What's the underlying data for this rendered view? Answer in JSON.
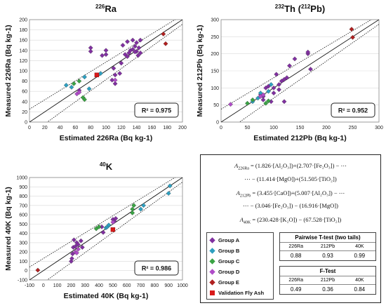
{
  "legend": [
    {
      "name": "Group A",
      "color": "#8030a0",
      "marker": "diamond"
    },
    {
      "name": "Group B",
      "color": "#2e9fc0",
      "marker": "diamond"
    },
    {
      "name": "Group C",
      "color": "#3aa344",
      "marker": "diamond"
    },
    {
      "name": "Group D",
      "color": "#b04cc8",
      "marker": "diamond"
    },
    {
      "name": "Group E",
      "color": "#b02020",
      "marker": "diamond"
    },
    {
      "name": "Validation Fly Ash",
      "color": "#d81a1a",
      "marker": "square"
    }
  ],
  "equations": {
    "ra_lhs": "A",
    "ra_lhs_sub": "226Ra",
    "ra_line1": "= (1.826·[Al₂O₃])+(2.707·[Fe₂O₃]) − ⋯",
    "ra_line2": "⋯ − (11.414·[MgO])+(51.505·[TiO₂])",
    "th_lhs": "A",
    "th_lhs_sub": "212Pb",
    "th_line1": "= (3.455·[CaO])+(5.007·[Al₂O₃]) − ⋯",
    "th_line2": "⋯ − (3.046·[Fe₂O₃]) − (16.916·[MgO])",
    "k_lhs": "A",
    "k_lhs_sub": "40K",
    "k_line1": "= (230.428·[K₂O]) − (67.528·[TiO₂])"
  },
  "tables": {
    "ttest": {
      "title": "Pairwise T-test (two tails)",
      "headers": [
        "226Ra",
        "212Pb",
        "40K"
      ],
      "values": [
        "0.88",
        "0.93",
        "0.99"
      ]
    },
    "ftest": {
      "title": "F-Test",
      "headers": [
        "226Ra",
        "212Pb",
        "40K"
      ],
      "values": [
        "0.49",
        "0.36",
        "0.84"
      ]
    }
  },
  "chart_data": [
    {
      "type": "scatter",
      "title_pre": "226",
      "title_main": "Ra",
      "xlabel": "Estimated 226Ra (Bq kg-1)",
      "ylabel": "Measured 226Ra (Bq kg-1)",
      "xlim": [
        0,
        200
      ],
      "ylim": [
        0,
        200
      ],
      "xticks": [
        0,
        20,
        40,
        60,
        80,
        100,
        120,
        140,
        160,
        180,
        200
      ],
      "yticks": [
        0,
        20,
        40,
        60,
        80,
        100,
        120,
        140,
        160,
        180,
        200
      ],
      "r2": "R² = 0.975",
      "fit": {
        "slope": 1.0,
        "intercept": 0
      },
      "series": [
        {
          "name": "Group A",
          "points": [
            [
              65,
              62
            ],
            [
              95,
              130
            ],
            [
              100,
              140
            ],
            [
              110,
              105
            ],
            [
              112,
              92
            ],
            [
              118,
              95
            ],
            [
              120,
              115
            ],
            [
              125,
              132
            ],
            [
              128,
              128
            ],
            [
              130,
              135
            ],
            [
              132,
              140
            ],
            [
              135,
              142
            ],
            [
              135,
              160
            ],
            [
              138,
              148
            ],
            [
              140,
              155
            ],
            [
              140,
              138
            ],
            [
              142,
              130
            ],
            [
              143,
              145
            ],
            [
              145,
              135
            ],
            [
              145,
              160
            ],
            [
              128,
              157
            ],
            [
              108,
              82
            ],
            [
              112,
              75
            ],
            [
              80,
              145
            ],
            [
              80,
              138
            ],
            [
              100,
              132
            ],
            [
              138,
              137
            ],
            [
              122,
              150
            ]
          ]
        },
        {
          "name": "Group B",
          "points": [
            [
              48,
              72
            ],
            [
              55,
              68
            ],
            [
              72,
              88
            ],
            [
              78,
              65
            ],
            [
              93,
              95
            ]
          ]
        },
        {
          "name": "Group C",
          "points": [
            [
              58,
              75
            ],
            [
              65,
              80
            ],
            [
              70,
              48
            ],
            [
              72,
              44
            ]
          ]
        },
        {
          "name": "Group D",
          "points": [
            [
              62,
              55
            ],
            [
              65,
              58
            ],
            [
              112,
              82
            ]
          ]
        },
        {
          "name": "Group E",
          "points": [
            [
              175,
              172
            ],
            [
              178,
              153
            ]
          ]
        },
        {
          "name": "Validation Fly Ash",
          "points": [
            [
              88,
              92
            ]
          ]
        }
      ]
    },
    {
      "type": "scatter",
      "title_pre": "232",
      "title_main": "Th (",
      "title_pre2": "212",
      "title_main2": "Pb)",
      "xlabel": "Estimated 212Pb (Bq kg-1)",
      "ylabel": "Measured 212Pb (Bq kg-1)",
      "xlim": [
        0,
        300
      ],
      "ylim": [
        0,
        300
      ],
      "xticks": [
        0,
        50,
        100,
        150,
        200,
        250,
        300
      ],
      "yticks": [
        0,
        50,
        100,
        150,
        200,
        250,
        300
      ],
      "r2": "R² = 0.952",
      "fit": {
        "slope": 1.0,
        "intercept": 0
      },
      "series": [
        {
          "name": "Group A",
          "points": [
            [
              75,
              80
            ],
            [
              80,
              75
            ],
            [
              85,
              100
            ],
            [
              90,
              105
            ],
            [
              100,
              85
            ],
            [
              105,
              140
            ],
            [
              110,
              95
            ],
            [
              110,
              110
            ],
            [
              115,
              120
            ],
            [
              120,
              60
            ],
            [
              120,
              125
            ],
            [
              125,
              130
            ],
            [
              130,
              165
            ],
            [
              140,
              185
            ],
            [
              165,
              200
            ],
            [
              165,
              205
            ],
            [
              170,
              155
            ],
            [
              80,
              65
            ],
            [
              95,
              60
            ],
            [
              100,
              100
            ]
          ]
        },
        {
          "name": "Group B",
          "points": [
            [
              60,
              60
            ],
            [
              70,
              70
            ],
            [
              75,
              85
            ],
            [
              90,
              90
            ],
            [
              95,
              110
            ]
          ]
        },
        {
          "name": "Group C",
          "points": [
            [
              50,
              55
            ],
            [
              60,
              65
            ],
            [
              85,
              55
            ],
            [
              90,
              62
            ]
          ]
        },
        {
          "name": "Group D",
          "points": [
            [
              18,
              52
            ],
            [
              75,
              75
            ],
            [
              80,
              80
            ]
          ]
        },
        {
          "name": "Group E",
          "points": [
            [
              248,
              272
            ],
            [
              250,
              248
            ]
          ]
        },
        {
          "name": "Validation Fly Ash",
          "points": []
        }
      ]
    },
    {
      "type": "scatter",
      "title_pre": "40",
      "title_main": "K",
      "xlabel": "Estimated 40K (Bq kg-1)",
      "ylabel": "Measured 40K (Bq kg-1)",
      "xlim": [
        -100,
        1000
      ],
      "ylim": [
        -100,
        1000
      ],
      "xticks": [
        -100,
        0,
        100,
        200,
        300,
        400,
        500,
        600,
        700,
        800,
        900,
        1000
      ],
      "yticks": [
        -100,
        0,
        100,
        200,
        300,
        400,
        500,
        600,
        700,
        800,
        900,
        1000
      ],
      "r2": "R² = 0.986",
      "fit": {
        "slope": 1.0,
        "intercept": 0
      },
      "series": [
        {
          "name": "Group A",
          "points": [
            [
              200,
              100
            ],
            [
              205,
              130
            ],
            [
              210,
              180
            ],
            [
              215,
              250
            ],
            [
              220,
              330
            ],
            [
              230,
              260
            ],
            [
              240,
              300
            ],
            [
              250,
              280
            ],
            [
              270,
              320
            ],
            [
              280,
              250
            ],
            [
              420,
              470
            ],
            [
              430,
              410
            ],
            [
              500,
              550
            ],
            [
              510,
              530
            ],
            [
              520,
              560
            ]
          ]
        },
        {
          "name": "Group B",
          "points": [
            [
              450,
              460
            ],
            [
              460,
              470
            ],
            [
              470,
              490
            ],
            [
              700,
              660
            ],
            [
              720,
              700
            ],
            [
              900,
              830
            ],
            [
              910,
              910
            ]
          ]
        },
        {
          "name": "Group C",
          "points": [
            [
              380,
              450
            ],
            [
              400,
              470
            ],
            [
              640,
              660
            ],
            [
              650,
              700
            ],
            [
              640,
              620
            ]
          ]
        },
        {
          "name": "Group D",
          "points": [
            [
              230,
              200
            ],
            [
              240,
              190
            ],
            [
              250,
              230
            ],
            [
              500,
              520
            ]
          ]
        },
        {
          "name": "Group E",
          "points": [
            [
              -40,
              5
            ]
          ]
        },
        {
          "name": "Validation Fly Ash",
          "points": [
            [
              500,
              440
            ]
          ]
        }
      ]
    }
  ]
}
